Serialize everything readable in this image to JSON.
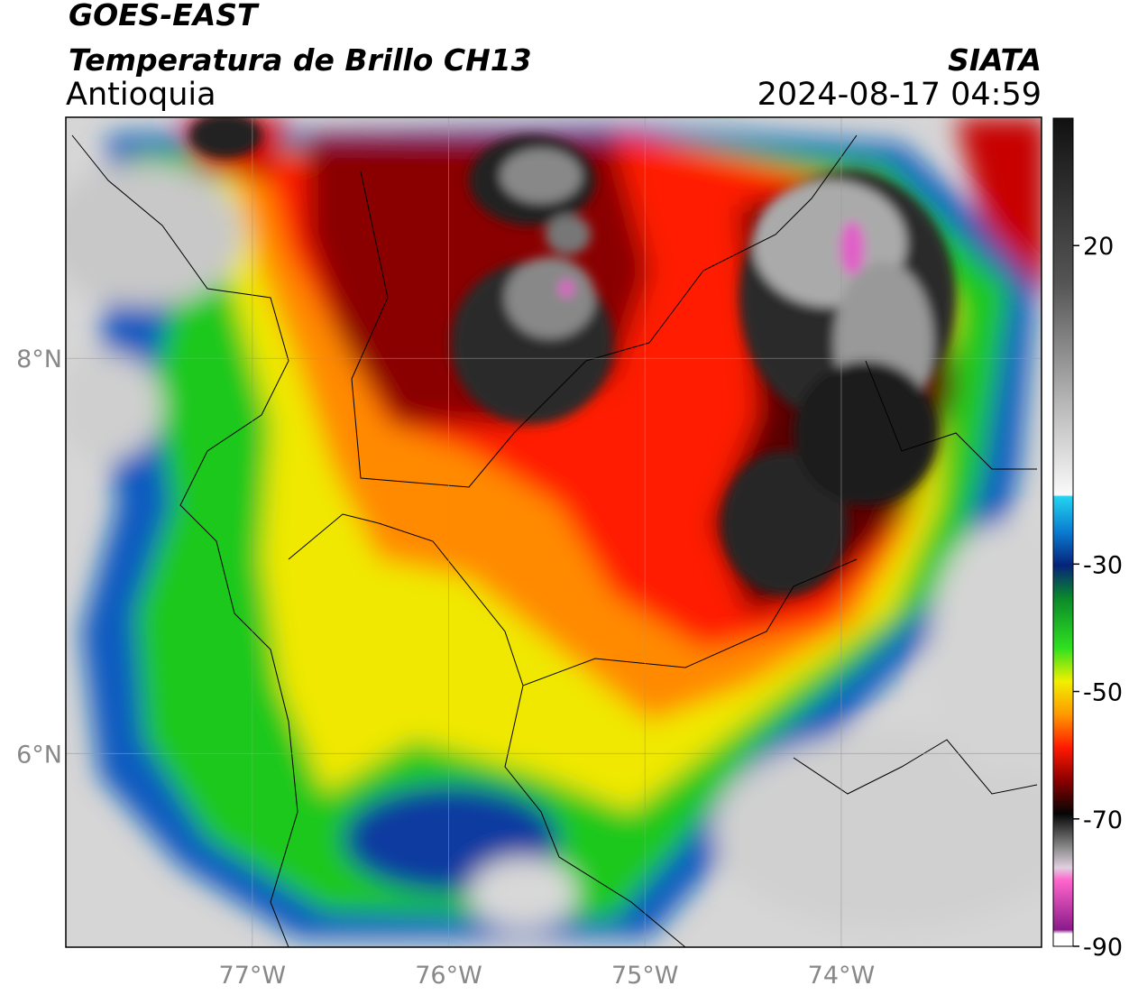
{
  "header": {
    "title": "GOES-EAST",
    "subtitle": "Temperatura de Brillo CH13",
    "region": "Antioquia",
    "source": "SIATA",
    "datetime": "2024-08-17 04:59"
  },
  "map": {
    "xlim": [
      -77.95,
      -72.98
    ],
    "ylim": [
      5.02,
      9.22
    ],
    "xticks": [
      {
        "value": -77,
        "label": "77°W"
      },
      {
        "value": -76,
        "label": "76°W"
      },
      {
        "value": -75,
        "label": "75°W"
      },
      {
        "value": -74,
        "label": "74°W"
      }
    ],
    "yticks": [
      {
        "value": 8,
        "label": "8°N"
      },
      {
        "value": 6,
        "label": "6°N"
      }
    ],
    "grid": true
  },
  "colorbar": {
    "lim": [
      -90,
      40
    ],
    "ticks": [
      20,
      -30,
      -50,
      -70,
      -90
    ]
  }
}
